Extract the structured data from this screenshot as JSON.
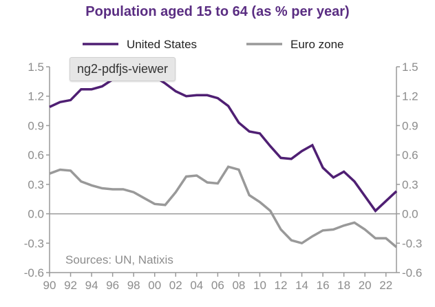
{
  "chart_data": {
    "type": "line",
    "title": "Population aged 15 to 64 (as % per year)",
    "xlabel": "",
    "ylabel": "",
    "x": [
      1990,
      1991,
      1992,
      1993,
      1994,
      1995,
      1996,
      1997,
      1998,
      1999,
      2000,
      2001,
      2002,
      2003,
      2004,
      2005,
      2006,
      2007,
      2008,
      2009,
      2010,
      2011,
      2012,
      2013,
      2014,
      2015,
      2016,
      2017,
      2018,
      2019,
      2020,
      2021,
      2022,
      2023
    ],
    "x_tick_labels": [
      "90",
      "92",
      "94",
      "96",
      "98",
      "00",
      "02",
      "04",
      "06",
      "08",
      "10",
      "12",
      "14",
      "16",
      "18",
      "20",
      "22"
    ],
    "y_ticks": [
      "1.5",
      "1.2",
      "0.9",
      "0.6",
      "0.3",
      "0.0",
      "-0.3",
      "-0.6"
    ],
    "ylim": [
      -0.6,
      1.5
    ],
    "legend_position": "top",
    "series": [
      {
        "name": "United States",
        "color": "#4f1f73",
        "values": [
          1.09,
          1.14,
          1.16,
          1.27,
          1.27,
          1.3,
          1.37,
          1.42,
          1.45,
          1.43,
          1.4,
          1.33,
          1.25,
          1.2,
          1.21,
          1.21,
          1.18,
          1.1,
          0.93,
          0.84,
          0.82,
          0.69,
          0.57,
          0.56,
          0.64,
          0.7,
          0.47,
          0.37,
          0.43,
          0.33,
          0.18,
          0.03,
          0.13,
          0.23
        ]
      },
      {
        "name": "Euro zone",
        "color": "#999999",
        "values": [
          0.41,
          0.45,
          0.44,
          0.33,
          0.29,
          0.26,
          0.25,
          0.25,
          0.22,
          0.16,
          0.1,
          0.09,
          0.22,
          0.38,
          0.39,
          0.32,
          0.31,
          0.48,
          0.45,
          0.19,
          0.12,
          0.03,
          -0.16,
          -0.27,
          -0.3,
          -0.23,
          -0.17,
          -0.16,
          -0.12,
          -0.09,
          -0.16,
          -0.25,
          -0.25,
          -0.34
        ]
      }
    ],
    "annotation": "Sources: UN, Natixis"
  },
  "tooltip": "ng2-pdfjs-viewer"
}
